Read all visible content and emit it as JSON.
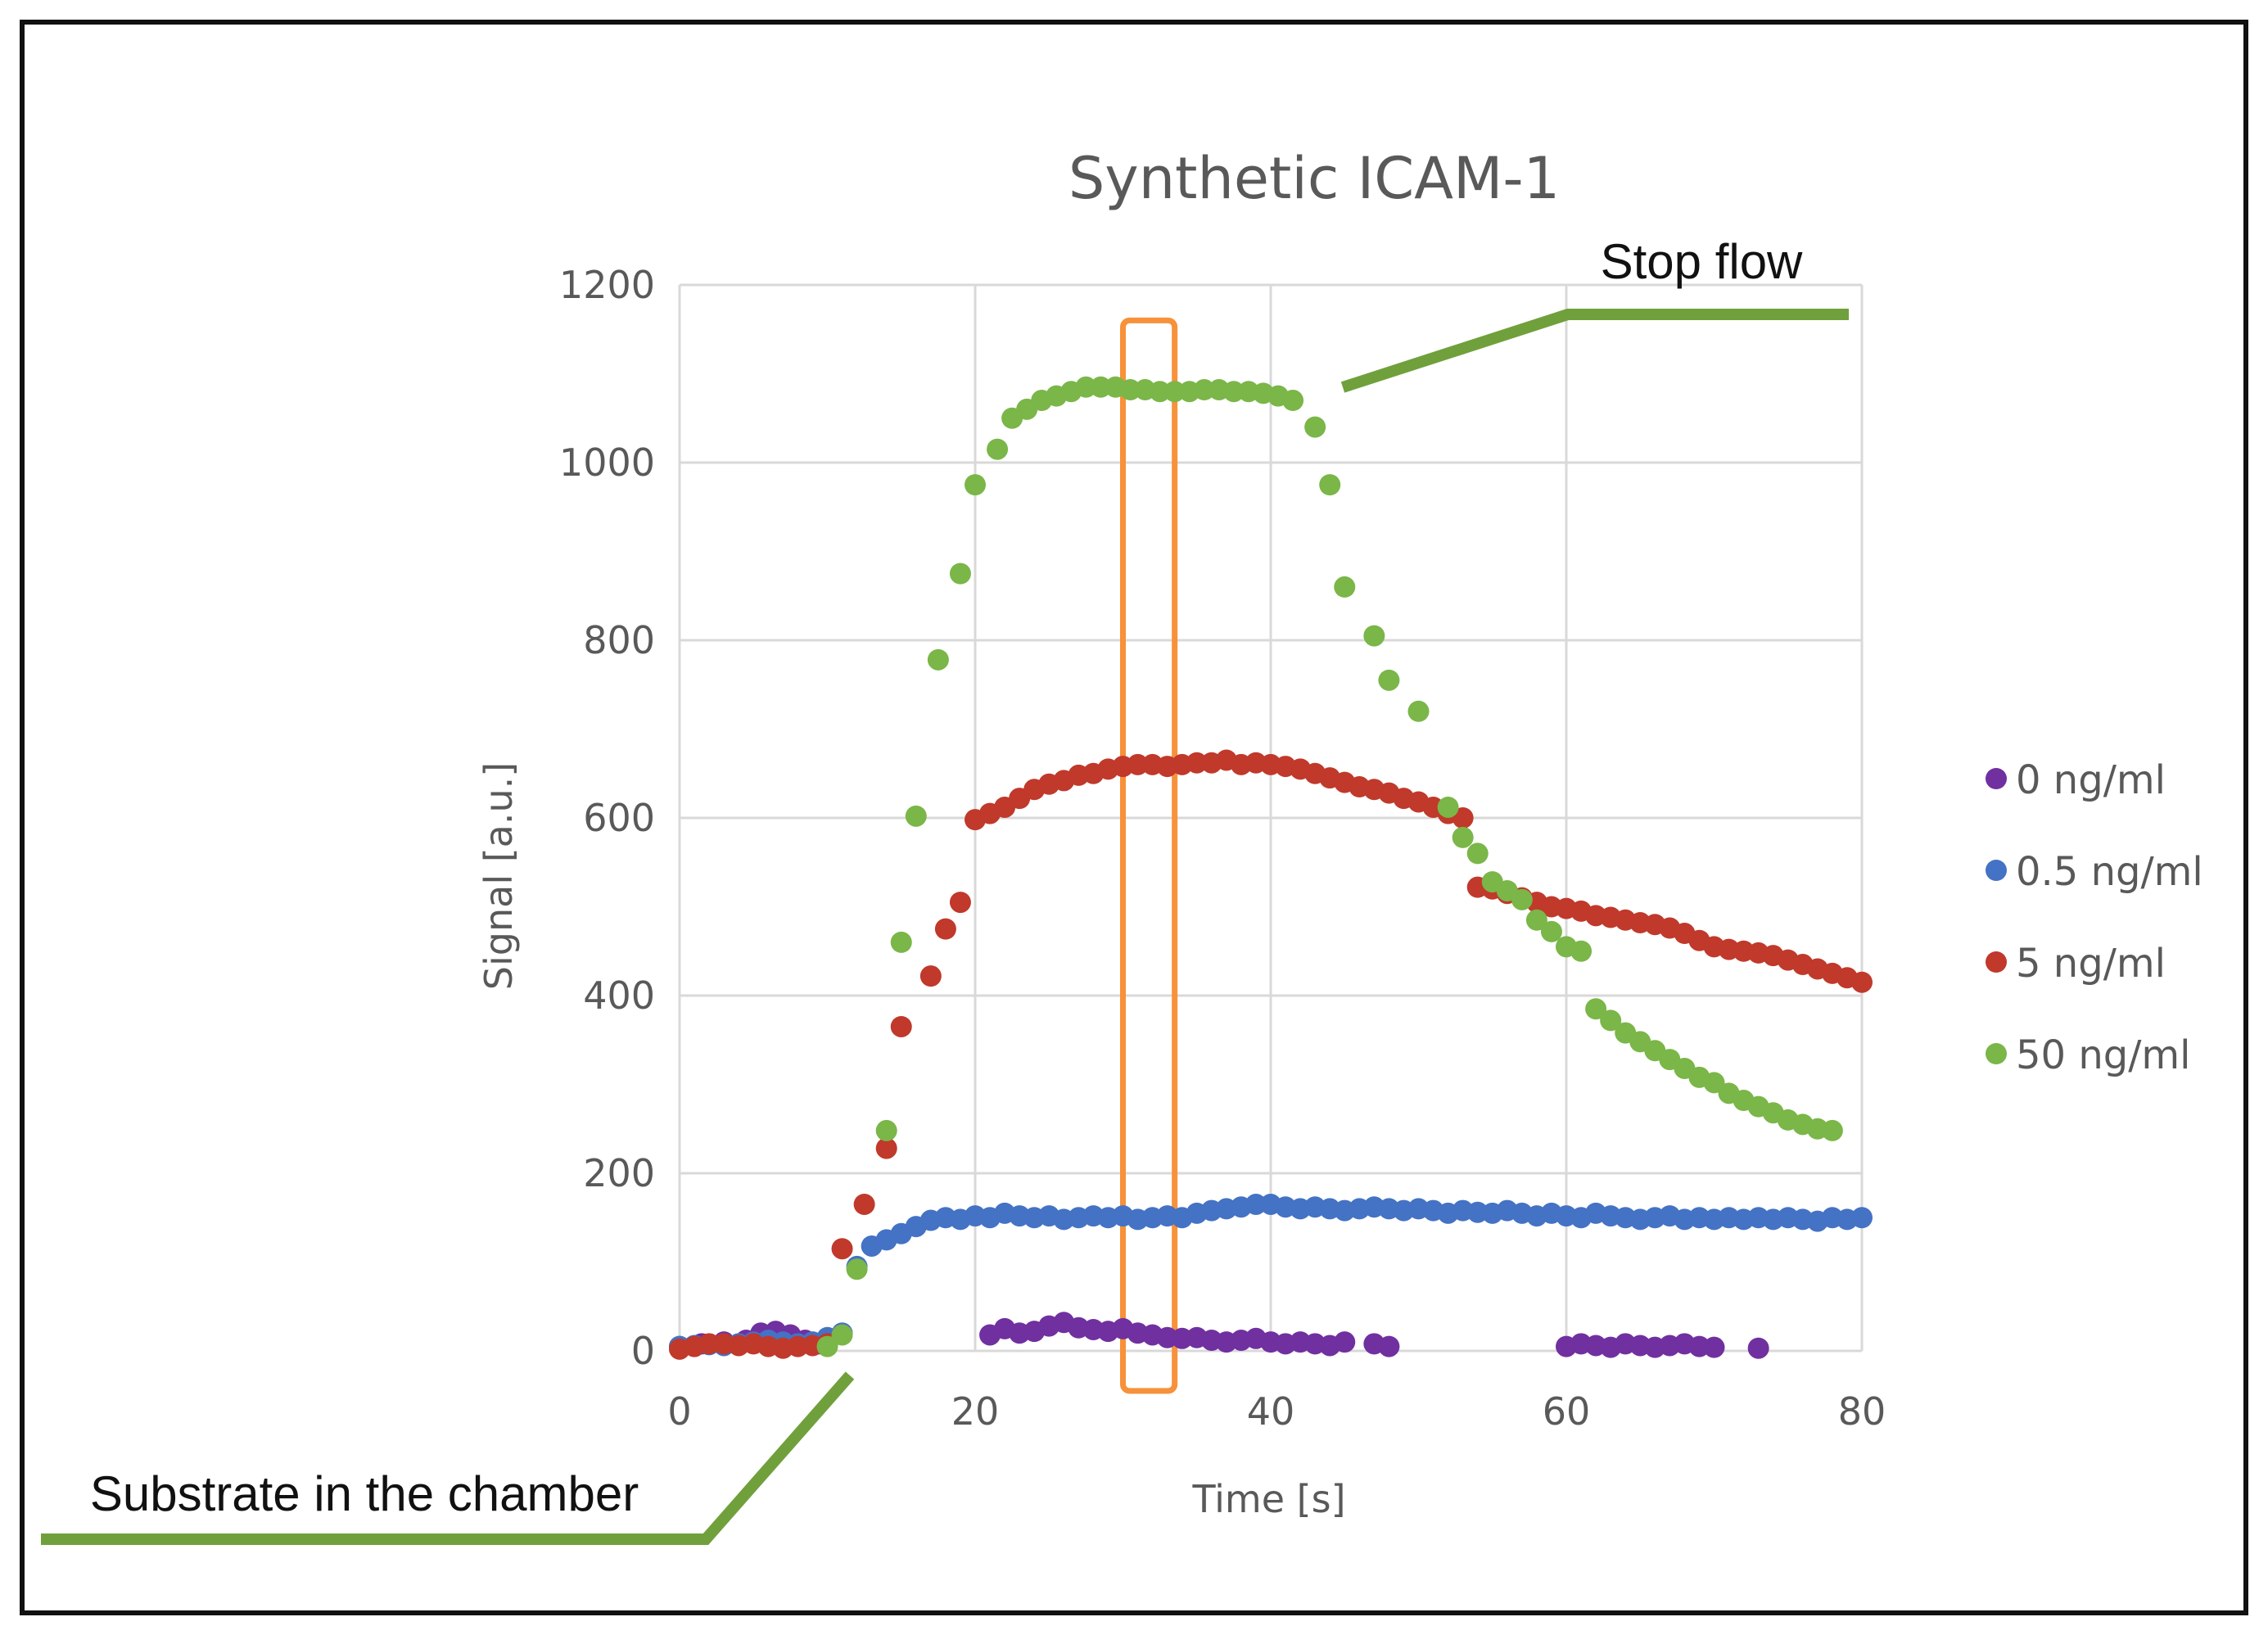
{
  "chart_data": {
    "type": "scatter",
    "title": "Synthetic ICAM-1",
    "xlabel": "Time [s]",
    "ylabel": "Signal [a.u.]",
    "xlim": [
      0,
      80
    ],
    "ylim": [
      0,
      1200
    ],
    "xticks": [
      0,
      20,
      40,
      60,
      80
    ],
    "yticks": [
      0,
      200,
      400,
      600,
      800,
      1000,
      1200
    ],
    "grid": true,
    "legend_position": "right",
    "series": [
      {
        "name": "0 ng/ml",
        "color": "#7030a0",
        "points": [
          [
            0,
            5
          ],
          [
            1.5,
            8
          ],
          [
            3,
            10
          ],
          [
            4.5,
            12
          ],
          [
            5.5,
            20
          ],
          [
            6.5,
            22
          ],
          [
            7.5,
            18
          ],
          [
            8.5,
            12
          ],
          [
            9.5,
            8
          ],
          [
            21,
            18
          ],
          [
            22,
            25
          ],
          [
            23,
            20
          ],
          [
            24,
            22
          ],
          [
            25,
            28
          ],
          [
            26,
            32
          ],
          [
            27,
            26
          ],
          [
            28,
            24
          ],
          [
            29,
            22
          ],
          [
            30,
            25
          ],
          [
            31,
            20
          ],
          [
            32,
            18
          ],
          [
            33,
            15
          ],
          [
            34,
            14
          ],
          [
            35,
            15
          ],
          [
            36,
            12
          ],
          [
            37,
            10
          ],
          [
            38,
            12
          ],
          [
            39,
            14
          ],
          [
            40,
            10
          ],
          [
            41,
            8
          ],
          [
            42,
            10
          ],
          [
            43,
            8
          ],
          [
            44,
            6
          ],
          [
            45,
            10
          ],
          [
            47,
            8
          ],
          [
            48,
            5
          ],
          [
            60,
            5
          ],
          [
            61,
            8
          ],
          [
            62,
            6
          ],
          [
            63,
            4
          ],
          [
            64,
            8
          ],
          [
            65,
            6
          ],
          [
            66,
            4
          ],
          [
            67,
            6
          ],
          [
            68,
            8
          ],
          [
            69,
            5
          ],
          [
            70,
            4
          ],
          [
            73,
            3
          ]
        ]
      },
      {
        "name": "0.5 ng/ml",
        "color": "#4472c4",
        "points": [
          [
            0,
            5
          ],
          [
            1,
            6
          ],
          [
            2,
            7
          ],
          [
            3,
            6
          ],
          [
            4,
            8
          ],
          [
            5,
            10
          ],
          [
            6,
            12
          ],
          [
            7,
            10
          ],
          [
            8,
            8
          ],
          [
            9,
            10
          ],
          [
            10,
            15
          ],
          [
            11,
            20
          ],
          [
            12,
            95
          ],
          [
            13,
            118
          ],
          [
            14,
            125
          ],
          [
            15,
            132
          ],
          [
            16,
            140
          ],
          [
            17,
            147
          ],
          [
            18,
            150
          ],
          [
            19,
            148
          ],
          [
            20,
            152
          ],
          [
            21,
            150
          ],
          [
            22,
            155
          ],
          [
            23,
            152
          ],
          [
            24,
            150
          ],
          [
            25,
            152
          ],
          [
            26,
            148
          ],
          [
            27,
            150
          ],
          [
            28,
            152
          ],
          [
            29,
            150
          ],
          [
            30,
            152
          ],
          [
            31,
            148
          ],
          [
            32,
            150
          ],
          [
            33,
            152
          ],
          [
            34,
            150
          ],
          [
            35,
            155
          ],
          [
            36,
            158
          ],
          [
            37,
            160
          ],
          [
            38,
            162
          ],
          [
            39,
            165
          ],
          [
            40,
            165
          ],
          [
            41,
            162
          ],
          [
            42,
            160
          ],
          [
            43,
            162
          ],
          [
            44,
            160
          ],
          [
            45,
            158
          ],
          [
            46,
            160
          ],
          [
            47,
            162
          ],
          [
            48,
            160
          ],
          [
            49,
            158
          ],
          [
            50,
            160
          ],
          [
            51,
            158
          ],
          [
            52,
            155
          ],
          [
            53,
            158
          ],
          [
            54,
            156
          ],
          [
            55,
            155
          ],
          [
            56,
            158
          ],
          [
            57,
            155
          ],
          [
            58,
            152
          ],
          [
            59,
            155
          ],
          [
            60,
            152
          ],
          [
            61,
            150
          ],
          [
            62,
            155
          ],
          [
            63,
            152
          ],
          [
            64,
            150
          ],
          [
            65,
            148
          ],
          [
            66,
            150
          ],
          [
            67,
            152
          ],
          [
            68,
            148
          ],
          [
            69,
            150
          ],
          [
            70,
            148
          ],
          [
            71,
            150
          ],
          [
            72,
            148
          ],
          [
            73,
            150
          ],
          [
            74,
            148
          ],
          [
            75,
            150
          ],
          [
            76,
            148
          ],
          [
            77,
            146
          ],
          [
            78,
            150
          ],
          [
            79,
            148
          ],
          [
            80,
            150
          ]
        ]
      },
      {
        "name": "5 ng/ml",
        "color": "#c0392b",
        "points": [
          [
            0,
            2
          ],
          [
            1,
            5
          ],
          [
            2,
            8
          ],
          [
            3,
            8
          ],
          [
            4,
            6
          ],
          [
            5,
            8
          ],
          [
            6,
            5
          ],
          [
            7,
            3
          ],
          [
            8,
            5
          ],
          [
            9,
            6
          ],
          [
            10,
            8
          ],
          [
            11,
            115
          ],
          [
            12.5,
            165
          ],
          [
            14,
            228
          ],
          [
            15,
            365
          ],
          [
            17,
            422
          ],
          [
            18,
            475
          ],
          [
            19,
            505
          ],
          [
            20,
            598
          ],
          [
            21,
            605
          ],
          [
            22,
            612
          ],
          [
            23,
            622
          ],
          [
            24,
            632
          ],
          [
            25,
            638
          ],
          [
            26,
            642
          ],
          [
            27,
            648
          ],
          [
            28,
            650
          ],
          [
            29,
            655
          ],
          [
            30,
            658
          ],
          [
            31,
            660
          ],
          [
            32,
            660
          ],
          [
            33,
            658
          ],
          [
            34,
            660
          ],
          [
            35,
            662
          ],
          [
            36,
            662
          ],
          [
            37,
            665
          ],
          [
            38,
            660
          ],
          [
            39,
            662
          ],
          [
            40,
            660
          ],
          [
            41,
            658
          ],
          [
            42,
            655
          ],
          [
            43,
            650
          ],
          [
            44,
            645
          ],
          [
            45,
            640
          ],
          [
            46,
            635
          ],
          [
            47,
            632
          ],
          [
            48,
            628
          ],
          [
            49,
            622
          ],
          [
            50,
            618
          ],
          [
            51,
            612
          ],
          [
            52,
            605
          ],
          [
            53,
            600
          ],
          [
            54,
            522
          ],
          [
            55,
            520
          ],
          [
            56,
            515
          ],
          [
            57,
            510
          ],
          [
            58,
            505
          ],
          [
            59,
            500
          ],
          [
            60,
            498
          ],
          [
            61,
            495
          ],
          [
            62,
            490
          ],
          [
            63,
            488
          ],
          [
            64,
            485
          ],
          [
            65,
            482
          ],
          [
            66,
            480
          ],
          [
            67,
            476
          ],
          [
            68,
            470
          ],
          [
            69,
            462
          ],
          [
            70,
            455
          ],
          [
            71,
            452
          ],
          [
            72,
            450
          ],
          [
            73,
            448
          ],
          [
            74,
            445
          ],
          [
            75,
            440
          ],
          [
            76,
            435
          ],
          [
            77,
            430
          ],
          [
            78,
            425
          ],
          [
            79,
            420
          ],
          [
            80,
            415
          ]
        ]
      },
      {
        "name": "50 ng/ml",
        "color": "#7ab648",
        "points": [
          [
            10,
            5
          ],
          [
            11,
            18
          ],
          [
            12,
            92
          ],
          [
            14,
            248
          ],
          [
            15,
            460
          ],
          [
            16,
            602
          ],
          [
            17.5,
            778
          ],
          [
            19,
            875
          ],
          [
            20,
            975
          ],
          [
            21.5,
            1015
          ],
          [
            22.5,
            1050
          ],
          [
            23.5,
            1060
          ],
          [
            24.5,
            1070
          ],
          [
            25.5,
            1075
          ],
          [
            26.5,
            1080
          ],
          [
            27.5,
            1085
          ],
          [
            28.5,
            1085
          ],
          [
            29.5,
            1085
          ],
          [
            30.5,
            1082
          ],
          [
            31.5,
            1082
          ],
          [
            32.5,
            1080
          ],
          [
            33.5,
            1080
          ],
          [
            34.5,
            1080
          ],
          [
            35.5,
            1082
          ],
          [
            36.5,
            1082
          ],
          [
            37.5,
            1080
          ],
          [
            38.5,
            1080
          ],
          [
            39.5,
            1078
          ],
          [
            40.5,
            1075
          ],
          [
            41.5,
            1070
          ],
          [
            43,
            1040
          ],
          [
            44,
            975
          ],
          [
            45,
            860
          ],
          [
            47,
            805
          ],
          [
            48,
            755
          ],
          [
            50,
            720
          ],
          [
            52,
            612
          ],
          [
            53,
            578
          ],
          [
            54,
            560
          ],
          [
            55,
            528
          ],
          [
            56,
            518
          ],
          [
            57,
            508
          ],
          [
            58,
            485
          ],
          [
            59,
            472
          ],
          [
            60,
            455
          ],
          [
            61,
            450
          ],
          [
            62,
            385
          ],
          [
            63,
            372
          ],
          [
            64,
            358
          ],
          [
            65,
            348
          ],
          [
            66,
            338
          ],
          [
            67,
            328
          ],
          [
            68,
            318
          ],
          [
            69,
            308
          ],
          [
            70,
            302
          ],
          [
            71,
            290
          ],
          [
            72,
            282
          ],
          [
            73,
            275
          ],
          [
            74,
            268
          ],
          [
            75,
            260
          ],
          [
            76,
            255
          ],
          [
            77,
            250
          ],
          [
            78,
            248
          ]
        ]
      }
    ],
    "annotations": [
      {
        "id": "stop-flow",
        "text": "Stop flow"
      },
      {
        "id": "substrate",
        "text": "Substrate in the chamber"
      }
    ],
    "highlight": {
      "x_from": 30,
      "x_to": 33.5,
      "color": "#f7913a"
    }
  }
}
